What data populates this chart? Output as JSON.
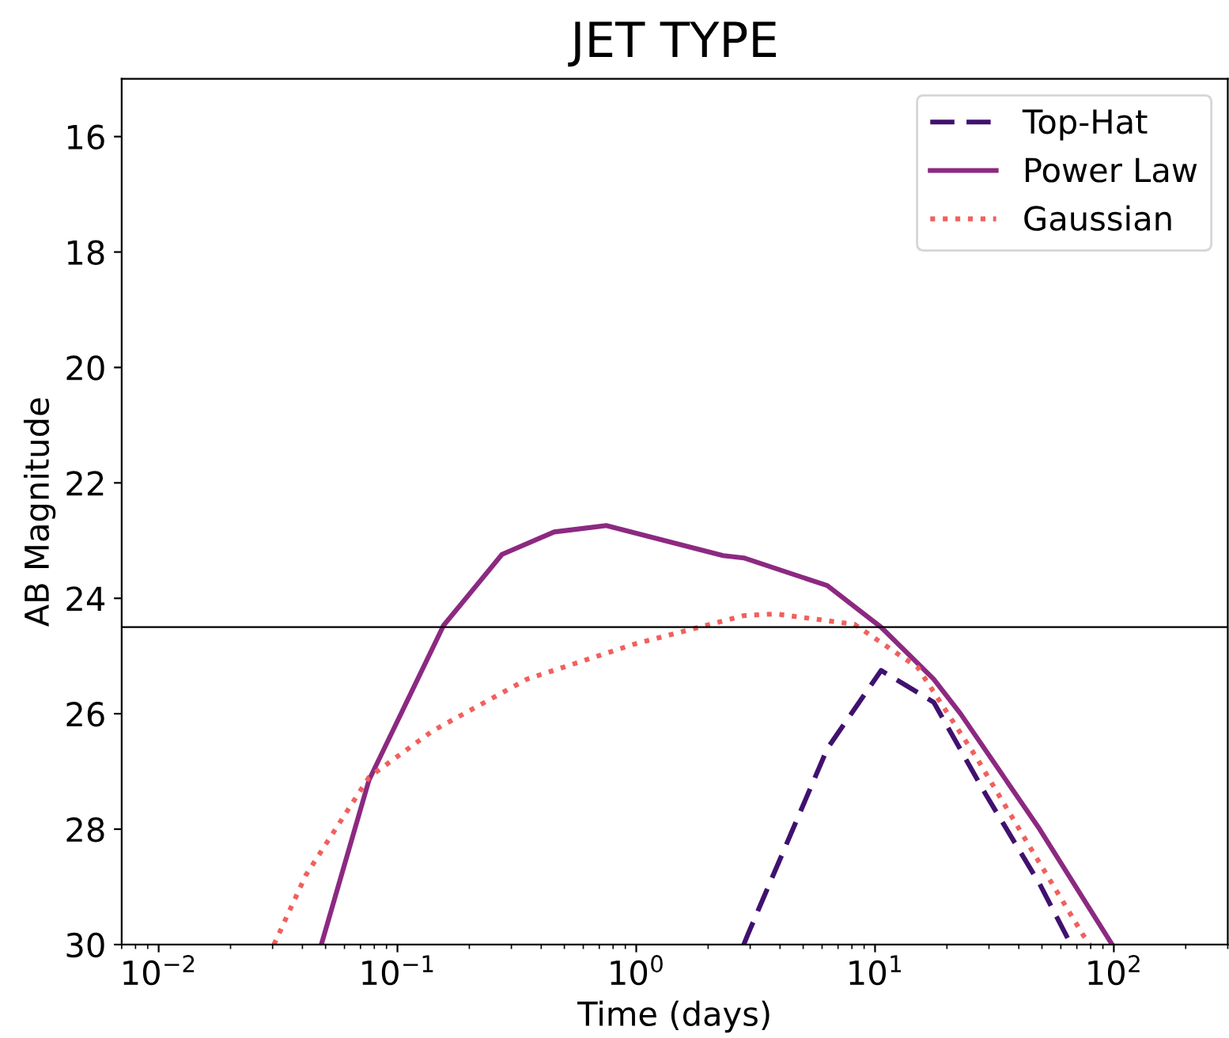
{
  "chart_data": {
    "type": "line",
    "title": "JET TYPE",
    "xlabel": "Time (days)",
    "ylabel": "AB Magnitude",
    "log": "x",
    "xlim": [
      0.007,
      300
    ],
    "ylim": [
      30,
      15
    ],
    "xticks": [
      {
        "value": 0.01,
        "label": "10$^{−2}$"
      },
      {
        "value": 0.1,
        "label": "10$^{−1}$"
      },
      {
        "value": 1,
        "label": "10$^{0}$"
      },
      {
        "value": 10,
        "label": "10$^{1}$"
      },
      {
        "value": 100,
        "label": "10$^{2}$"
      }
    ],
    "yticks": [
      16,
      18,
      20,
      22,
      24,
      26,
      28,
      30
    ],
    "grid": false,
    "legend": "top right",
    "ref_lines": [
      {
        "axis": "y",
        "value": 24.5,
        "color": "#000000",
        "line_style": "solid"
      }
    ],
    "series": [
      {
        "name": "Top-Hat",
        "color": "#40116f",
        "line_style": "dashed",
        "x": [
          2.82,
          2.95,
          6.32,
          10.6,
          17.6,
          29.1,
          48.9,
          64.3,
          67.6
        ],
        "values": [
          30,
          29.8,
          26.6,
          25.25,
          25.8,
          27.4,
          28.95,
          29.9,
          30
        ]
      },
      {
        "name": "Power Law",
        "color": "#8c2981",
        "line_style": "solid",
        "x": [
          0.048,
          0.076,
          0.156,
          0.274,
          0.453,
          0.748,
          2.31,
          2.82,
          6.31,
          10.6,
          17.6,
          22.8,
          48.9,
          98.4
        ],
        "values": [
          30,
          27.15,
          24.47,
          23.24,
          22.85,
          22.74,
          23.26,
          23.3,
          23.78,
          24.5,
          25.4,
          26.0,
          28.0,
          30
        ]
      },
      {
        "name": "Gaussian",
        "color": "#f1605d",
        "line_style": "dotted",
        "x": [
          0.0304,
          0.0413,
          0.076,
          0.14,
          0.349,
          0.97,
          2.82,
          3.83,
          8.2,
          15.1,
          26.5,
          45.9,
          74.8,
          79.4
        ],
        "values": [
          30,
          28.8,
          27.1,
          26.3,
          25.4,
          24.8,
          24.3,
          24.27,
          24.45,
          25.2,
          26.75,
          28.4,
          29.85,
          30
        ]
      }
    ]
  }
}
